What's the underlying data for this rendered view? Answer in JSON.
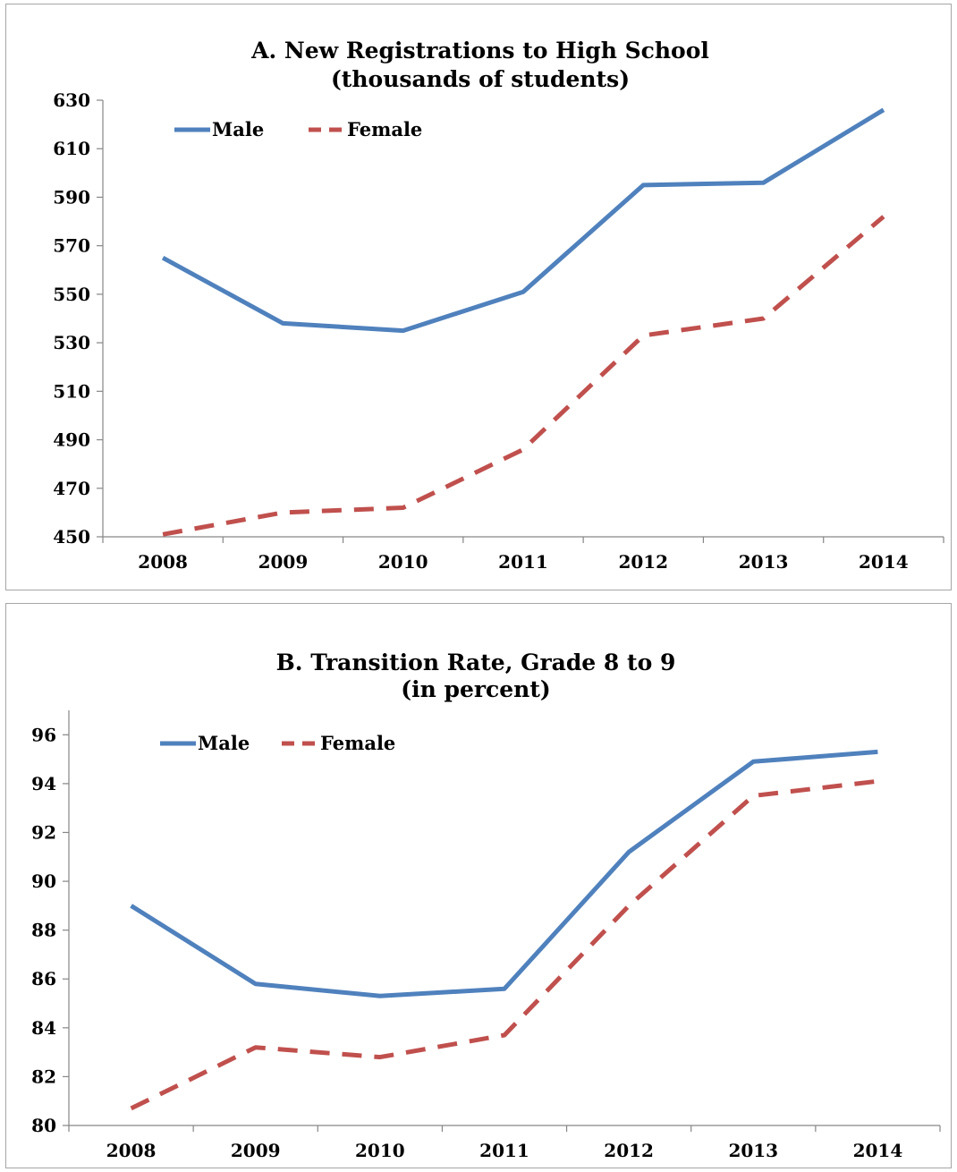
{
  "chart_data": [
    {
      "type": "line",
      "title": "A. New Registrations to High School",
      "subtitle": "(thousands of students)",
      "xlabel": "",
      "ylabel": "",
      "categories": [
        "2008",
        "2009",
        "2010",
        "2011",
        "2012",
        "2013",
        "2014"
      ],
      "ylim": [
        450,
        630
      ],
      "yticks": [
        450,
        470,
        490,
        510,
        530,
        550,
        570,
        590,
        610,
        630
      ],
      "grid": false,
      "legend_position": "top-left",
      "series": [
        {
          "name": "Male",
          "values": [
            565,
            538,
            535,
            551,
            595,
            596,
            626
          ],
          "color": "#4f81bd",
          "dash": "solid"
        },
        {
          "name": "Female",
          "values": [
            451,
            460,
            462,
            486,
            533,
            540,
            582
          ],
          "color": "#c0504d",
          "dash": "dashed"
        }
      ]
    },
    {
      "type": "line",
      "title": "B. Transition Rate, Grade 8 to 9",
      "subtitle": "(in percent)",
      "xlabel": "",
      "ylabel": "",
      "categories": [
        "2008",
        "2009",
        "2010",
        "2011",
        "2012",
        "2013",
        "2014"
      ],
      "ylim": [
        80,
        97
      ],
      "yticks": [
        80,
        82,
        84,
        86,
        88,
        90,
        92,
        94,
        96
      ],
      "grid": false,
      "legend_position": "top-left",
      "series": [
        {
          "name": "Male",
          "values": [
            89.0,
            85.8,
            85.3,
            85.6,
            91.2,
            94.9,
            95.3
          ],
          "color": "#4f81bd",
          "dash": "solid"
        },
        {
          "name": "Female",
          "values": [
            80.7,
            83.2,
            82.8,
            83.7,
            89.0,
            93.5,
            94.1
          ],
          "color": "#c0504d",
          "dash": "dashed"
        }
      ]
    }
  ]
}
